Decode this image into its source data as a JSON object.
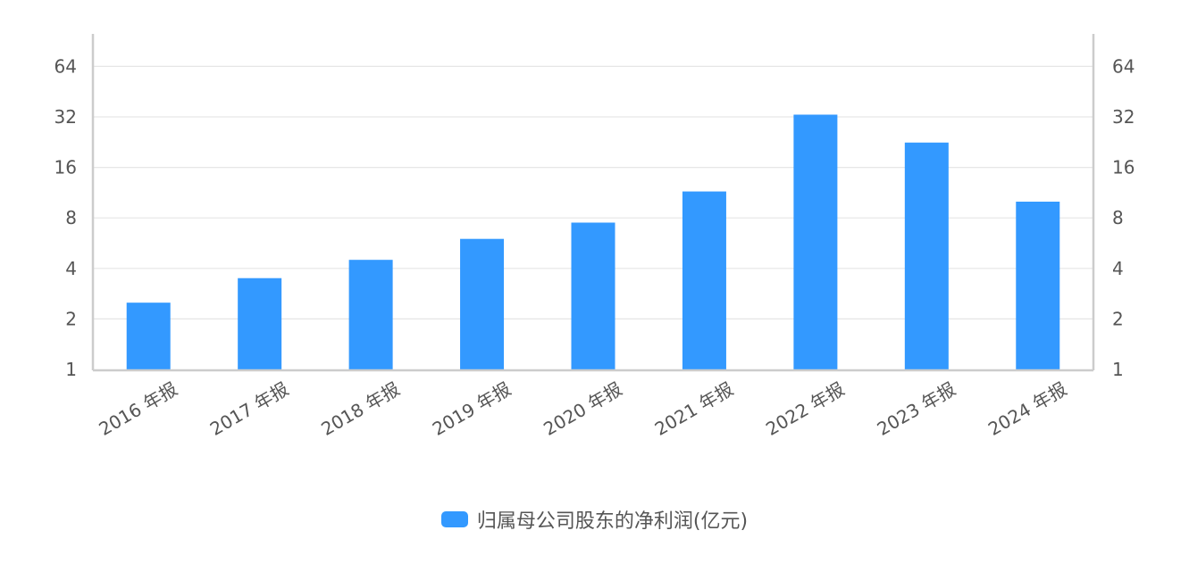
{
  "chart_data": {
    "type": "bar",
    "y_scale": "log2",
    "categories": [
      "2016 年报",
      "2017 年报",
      "2018 年报",
      "2019 年报",
      "2020 年报",
      "2021 年报",
      "2022 年报",
      "2023 年报",
      "2024 年报"
    ],
    "series": [
      {
        "name": "归属母公司股东的净利润(亿元)",
        "color": "#3399ff",
        "values": [
          2.5,
          3.5,
          4.5,
          6.0,
          7.5,
          11.5,
          33.0,
          22.5,
          10.0
        ]
      }
    ],
    "yticks": [
      1,
      2,
      4,
      8,
      16,
      32,
      64
    ],
    "ylim": [
      1,
      128
    ],
    "grid": true,
    "dual_y_axis": true,
    "legend_position": "bottom-center"
  }
}
